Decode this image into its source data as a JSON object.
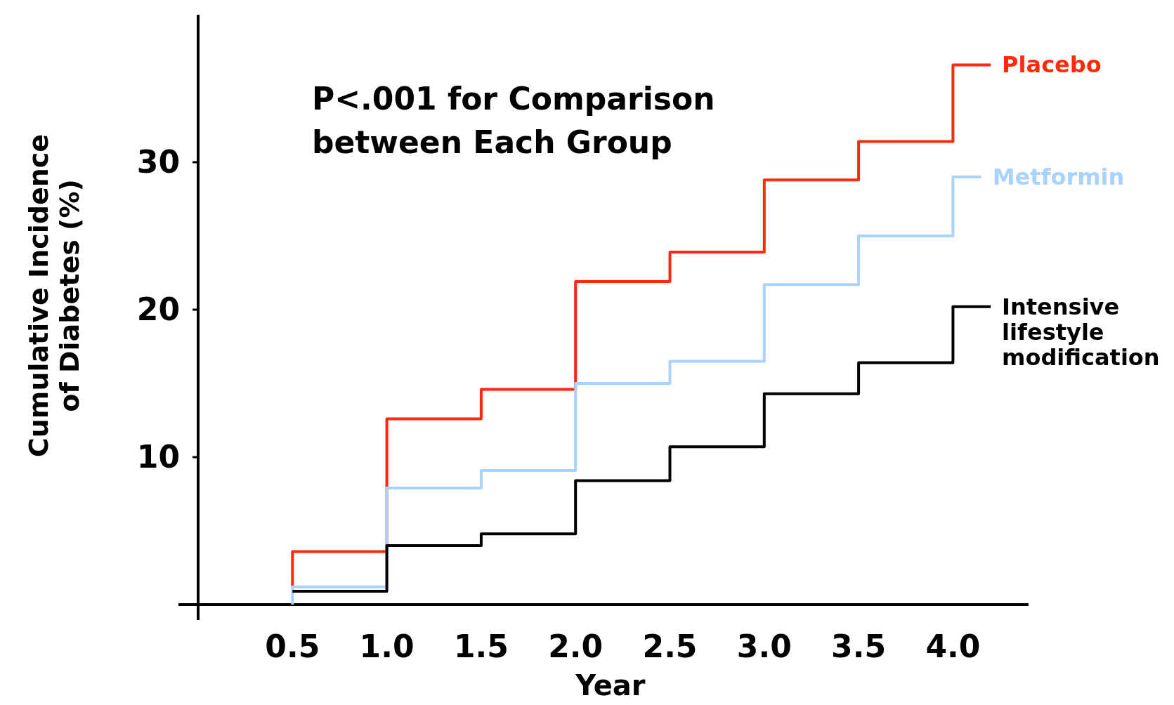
{
  "chart_data": {
    "type": "step",
    "xlabel": "Year",
    "ylabel": "Cumulative Incidence of Diabetes (%)",
    "annotations": [
      "P<.001 for Comparison between Each Group"
    ],
    "xlim": [
      0,
      4.4
    ],
    "ylim": [
      0,
      40
    ],
    "xticks": [
      {
        "value": 0.5,
        "label": "0.5"
      },
      {
        "value": 1,
        "label": "1.0"
      },
      {
        "value": 1.5,
        "label": "1.5"
      },
      {
        "value": 2,
        "label": "2.0"
      },
      {
        "value": 2.5,
        "label": "2.5"
      },
      {
        "value": 3,
        "label": "3.0"
      },
      {
        "value": 3.5,
        "label": "3.5"
      },
      {
        "value": 4,
        "label": "4.0"
      }
    ],
    "yticks": [
      10,
      20,
      30
    ],
    "grid": false,
    "series": [
      {
        "name": "Placebo",
        "color": "#ff2a0a",
        "x": [
          0.5,
          0.5,
          1,
          1.5,
          2,
          2.5,
          3,
          3.5,
          4,
          4.2
        ],
        "values": [
          1.2,
          3.6,
          12.6,
          14.6,
          21.9,
          23.9,
          28.8,
          31.4,
          36.6,
          36.6
        ]
      },
      {
        "name": "Metformin",
        "color": "#a8d2ff",
        "x": [
          0.5,
          0.5,
          1,
          1.5,
          2,
          2.5,
          3,
          3.5,
          4,
          4.15
        ],
        "values": [
          0,
          1.2,
          7.9,
          9.1,
          15.0,
          16.5,
          21.7,
          25.0,
          29.0,
          29.0
        ]
      },
      {
        "name": "Intensive lifestyle modification",
        "color": "#000000",
        "x": [
          0.5,
          1,
          1.5,
          2,
          2.5,
          3,
          3.5,
          4,
          4.2
        ],
        "values": [
          0.9,
          4.0,
          4.8,
          8.4,
          10.7,
          14.3,
          16.4,
          20.2,
          20.2
        ]
      }
    ]
  }
}
